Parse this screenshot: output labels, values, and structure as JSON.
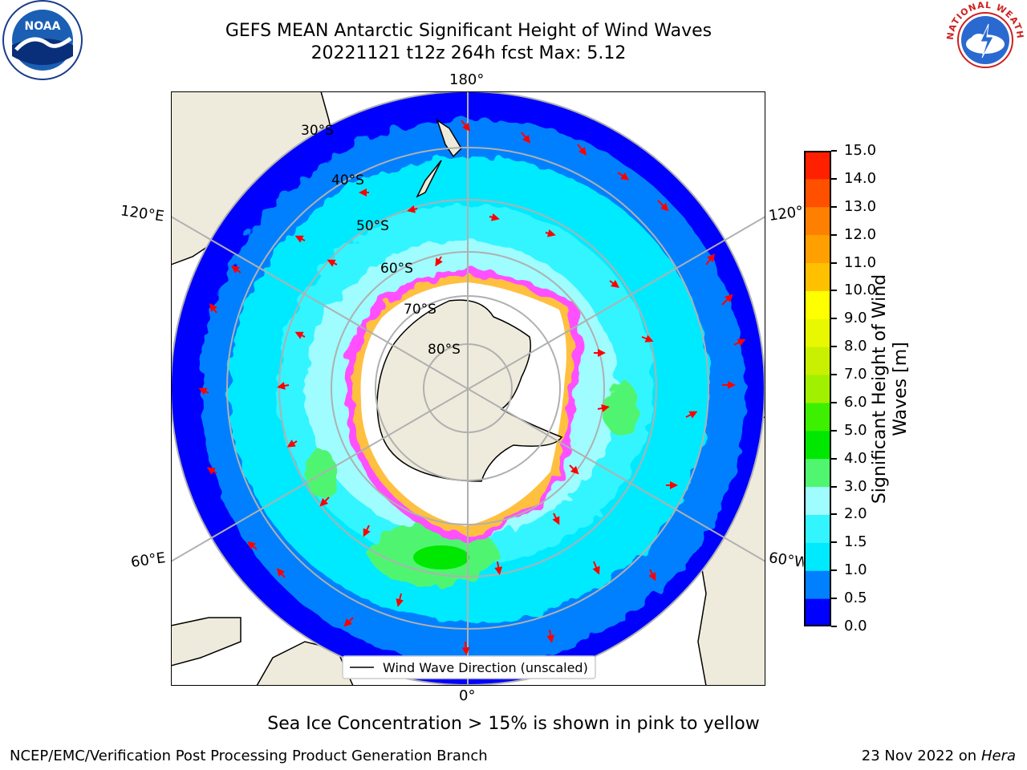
{
  "header": {
    "title_line1": "GEFS MEAN Antarctic Significant Height of Wind Waves",
    "title_line2": "20221121 t12z 264h fcst   Max: 5.12"
  },
  "map": {
    "projection": "south-polar-stereographic",
    "longitude_labels": {
      "top": "180°",
      "bottom": "0°",
      "upper_left": "120°E",
      "lower_left": "60°E",
      "upper_right": "120°W",
      "lower_right": "60°W"
    },
    "latitude_labels": [
      "30°S",
      "40°S",
      "50°S",
      "60°S",
      "70°S",
      "80°S"
    ],
    "legend_label": "Wind Wave Direction (unscaled)",
    "colors": {
      "land": "#efebdc",
      "ice": "#ffffff",
      "vector": "#ff0000",
      "graticule": "#b0b0b0"
    }
  },
  "colorbar": {
    "label": "Significant Height of Wind Waves [m]",
    "label_line1": "Significant Height of Wind",
    "label_line2": "Waves [m]",
    "ticks": [
      "0.0",
      "0.5",
      "1.0",
      "1.5",
      "2.0",
      "3.0",
      "4.0",
      "5.0",
      "6.0",
      "7.0",
      "8.0",
      "9.0",
      "10.0",
      "11.0",
      "12.0",
      "13.0",
      "14.0",
      "15.0"
    ],
    "colors": [
      "#0000ff",
      "#0080ff",
      "#00eaff",
      "#33f5ff",
      "#9ffcff",
      "#50f570",
      "#00e800",
      "#3cf000",
      "#a0f000",
      "#c8f000",
      "#e8f800",
      "#ffff00",
      "#ffc000",
      "#ffa000",
      "#ff8000",
      "#ff5000",
      "#ff2000"
    ]
  },
  "notes": {
    "sea_ice": "Sea Ice Concentration > 15% is shown in pink to yellow",
    "producer": "NCEP/EMC/Verification Post Processing Product Generation Branch",
    "date": "23 Nov 2022 on",
    "machine": "Hera"
  },
  "logos": {
    "left": "NOAA",
    "right": "NATIONAL WEATHER SERVICE"
  }
}
